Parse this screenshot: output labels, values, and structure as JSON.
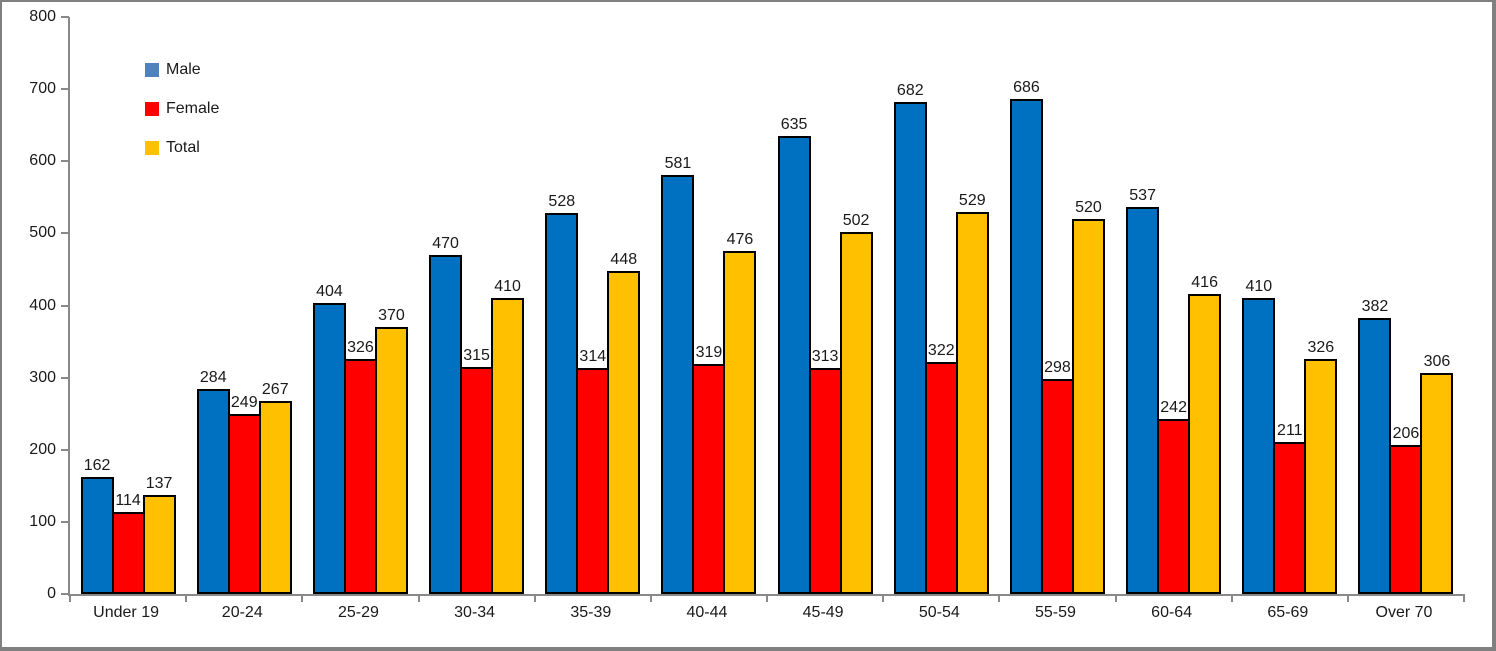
{
  "chart_data": {
    "type": "bar",
    "title": "",
    "xlabel": "",
    "ylabel": "",
    "categories": [
      "Under 19",
      "20-24",
      "25-29",
      "30-34",
      "35-39",
      "40-44",
      "45-49",
      "50-54",
      "55-59",
      "60-64",
      "65-69",
      "Over 70"
    ],
    "series": [
      {
        "name": "Male",
        "bar_color": "#0070C0",
        "legend_color": "#4F81BD",
        "values": [
          162,
          284,
          404,
          470,
          528,
          581,
          635,
          682,
          686,
          537,
          410,
          382
        ]
      },
      {
        "name": "Female",
        "bar_color": "#FF0000",
        "legend_color": "#FF0000",
        "values": [
          114,
          249,
          326,
          315,
          314,
          319,
          313,
          322,
          298,
          242,
          211,
          206
        ]
      },
      {
        "name": "Total",
        "bar_color": "#FFC000",
        "legend_color": "#FFC000",
        "values": [
          137,
          267,
          370,
          410,
          448,
          476,
          502,
          529,
          520,
          416,
          326,
          306
        ]
      }
    ],
    "ylim": [
      0,
      800
    ],
    "ytick_step": 100,
    "yticks": [
      0,
      100,
      200,
      300,
      400,
      500,
      600,
      700,
      800
    ],
    "data_labels": true,
    "grid": false,
    "legend_position": "inside-top-left",
    "axis_color": "#898989",
    "bar_border_color": "#000000",
    "background_color": "#FFFFFF",
    "frame_border_color": "#808080"
  }
}
